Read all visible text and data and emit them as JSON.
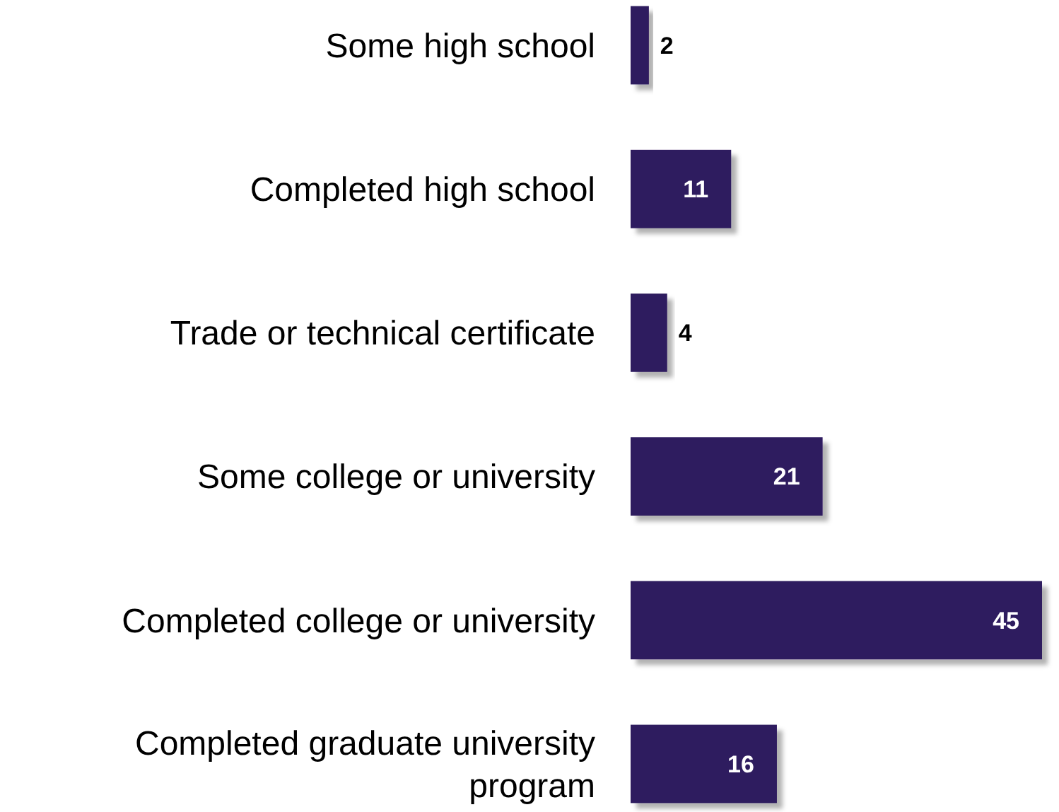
{
  "chart_data": {
    "type": "bar",
    "orientation": "horizontal",
    "data_labels": true,
    "categories": [
      "Some high school",
      "Completed high school",
      "Trade or technical certificate",
      "Some college or university",
      "Completed college or university",
      "Completed graduate university program"
    ],
    "values": [
      2,
      11,
      4,
      21,
      45,
      16
    ],
    "color": "#2e1a5e"
  }
}
